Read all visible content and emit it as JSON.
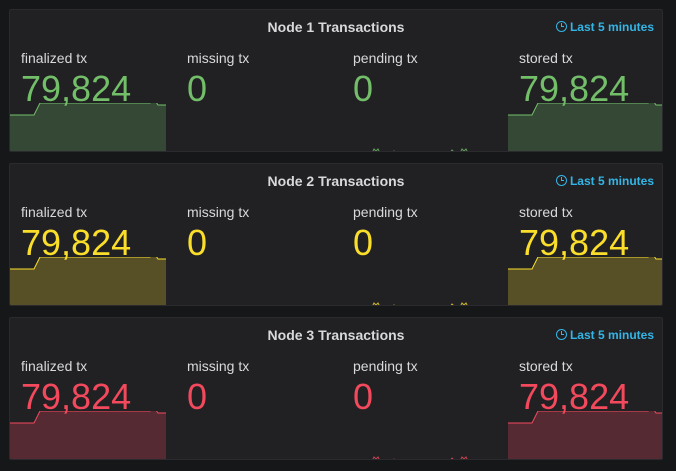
{
  "panels": [
    {
      "title": "Node 1 Transactions",
      "time_range": "Last 5 minutes",
      "color": "#73bf69",
      "fill": "rgba(115,191,105,0.25)",
      "stats": [
        {
          "label": "finalized tx",
          "value": "79,824",
          "spark": "full"
        },
        {
          "label": "missing tx",
          "value": "0",
          "spark": "none"
        },
        {
          "label": "pending tx",
          "value": "0",
          "spark": "pending"
        },
        {
          "label": "stored tx",
          "value": "79,824",
          "spark": "full"
        }
      ]
    },
    {
      "title": "Node 2 Transactions",
      "time_range": "Last 5 minutes",
      "color": "#fade2a",
      "fill": "rgba(250,222,42,0.25)",
      "stats": [
        {
          "label": "finalized tx",
          "value": "79,824",
          "spark": "full"
        },
        {
          "label": "missing tx",
          "value": "0",
          "spark": "none"
        },
        {
          "label": "pending tx",
          "value": "0",
          "spark": "pending"
        },
        {
          "label": "stored tx",
          "value": "79,824",
          "spark": "full"
        }
      ]
    },
    {
      "title": "Node 3 Transactions",
      "time_range": "Last 5 minutes",
      "color": "#f2495c",
      "fill": "rgba(242,73,92,0.25)",
      "stats": [
        {
          "label": "finalized tx",
          "value": "79,824",
          "spark": "full"
        },
        {
          "label": "missing tx",
          "value": "0",
          "spark": "none"
        },
        {
          "label": "pending tx",
          "value": "0",
          "spark": "pending"
        },
        {
          "label": "stored tx",
          "value": "79,824",
          "spark": "full"
        }
      ]
    }
  ]
}
